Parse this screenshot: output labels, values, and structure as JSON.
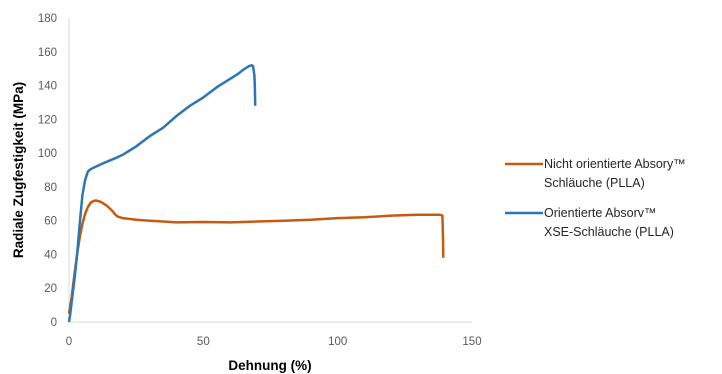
{
  "chart_data": {
    "type": "line",
    "xlabel": "Dehnung (%)",
    "ylabel": "Radiale Zugfestigkeit (MPa)",
    "xlim": [
      0,
      150
    ],
    "ylim": [
      0,
      180
    ],
    "xticks": [
      0,
      50,
      100,
      150
    ],
    "yticks": [
      0,
      20,
      40,
      60,
      80,
      100,
      120,
      140,
      160,
      180
    ],
    "grid": false,
    "legend_position": "right",
    "series": [
      {
        "name_lines": [
          "Nicht orientierte Absory™",
          "Schläuche (PLLA)"
        ],
        "color": "#c55a11",
        "points": [
          [
            0,
            5
          ],
          [
            1,
            15
          ],
          [
            2,
            28
          ],
          [
            3,
            40
          ],
          [
            4,
            50
          ],
          [
            5,
            58
          ],
          [
            6,
            64
          ],
          [
            7,
            68
          ],
          [
            8,
            70.5
          ],
          [
            9,
            71.5
          ],
          [
            10,
            72
          ],
          [
            11,
            71.5
          ],
          [
            12,
            71
          ],
          [
            13,
            70
          ],
          [
            14,
            69
          ],
          [
            15,
            67.5
          ],
          [
            16,
            66
          ],
          [
            17,
            64
          ],
          [
            18,
            62.5
          ],
          [
            19,
            62
          ],
          [
            20,
            61.5
          ],
          [
            25,
            60.5
          ],
          [
            30,
            60
          ],
          [
            35,
            59.5
          ],
          [
            40,
            59
          ],
          [
            50,
            59.2
          ],
          [
            60,
            59
          ],
          [
            70,
            59.5
          ],
          [
            80,
            60
          ],
          [
            90,
            60.5
          ],
          [
            100,
            61.5
          ],
          [
            110,
            62
          ],
          [
            120,
            63
          ],
          [
            130,
            63.5
          ],
          [
            135,
            63.5
          ],
          [
            138,
            63.5
          ],
          [
            139,
            63
          ],
          [
            139.2,
            50
          ],
          [
            139.3,
            38
          ]
        ]
      },
      {
        "name_lines": [
          "Orientierte Absorv™",
          "XSE-Schläuche (PLLA)"
        ],
        "color": "#2e75b6",
        "points": [
          [
            0,
            0
          ],
          [
            0.5,
            5
          ],
          [
            1,
            12
          ],
          [
            2,
            25
          ],
          [
            3,
            40
          ],
          [
            4,
            58
          ],
          [
            5,
            75
          ],
          [
            6,
            84
          ],
          [
            7,
            89
          ],
          [
            8,
            90.5
          ],
          [
            10,
            92
          ],
          [
            12,
            93.5
          ],
          [
            15,
            95.5
          ],
          [
            18,
            97.5
          ],
          [
            20,
            99
          ],
          [
            25,
            104
          ],
          [
            30,
            110
          ],
          [
            35,
            115
          ],
          [
            40,
            122
          ],
          [
            45,
            128
          ],
          [
            50,
            133
          ],
          [
            55,
            139
          ],
          [
            60,
            144
          ],
          [
            63,
            147
          ],
          [
            65,
            149.5
          ],
          [
            67,
            151.5
          ],
          [
            68,
            152
          ],
          [
            68.5,
            151.5
          ],
          [
            69,
            146
          ],
          [
            69.2,
            138
          ],
          [
            69.3,
            128
          ]
        ]
      }
    ]
  }
}
